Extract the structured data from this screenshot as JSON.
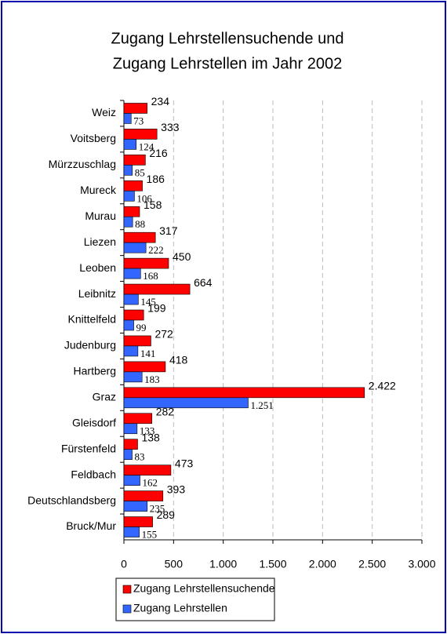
{
  "chart_data": {
    "type": "bar",
    "orientation": "horizontal",
    "title": [
      "Zugang Lehrstellensuchende und",
      "Zugang  Lehrstellen im Jahr 2002"
    ],
    "categories": [
      "Weiz",
      "Voitsberg",
      "Mürzzuschlag",
      "Mureck",
      "Murau",
      "Liezen",
      "Leoben",
      "Leibnitz",
      "Knittelfeld",
      "Judenburg",
      "Hartberg",
      "Graz",
      "Gleisdorf",
      "Fürstenfeld",
      "Feldbach",
      "Deutschlandsberg",
      "Bruck/Mur"
    ],
    "series": [
      {
        "name": "Zugang Lehrstellensuchende",
        "color": "#ff0000",
        "values": [
          234,
          333,
          216,
          186,
          158,
          317,
          450,
          664,
          199,
          272,
          418,
          2422,
          282,
          138,
          473,
          393,
          289
        ],
        "value_labels": [
          "234",
          "333",
          "216",
          "186",
          "158",
          "317",
          "450",
          "664",
          "199",
          "272",
          "418",
          "2.422",
          "282",
          "138",
          "473",
          "393",
          "289"
        ]
      },
      {
        "name": "Zugang Lehrstellen",
        "color": "#3366ff",
        "values": [
          73,
          124,
          85,
          106,
          88,
          222,
          168,
          145,
          99,
          141,
          183,
          1251,
          133,
          83,
          162,
          235,
          155
        ],
        "value_labels": [
          "73",
          "124",
          "85",
          "106",
          "88",
          "222",
          "168",
          "145",
          "99",
          "141",
          "183",
          "1.251",
          "133",
          "83",
          "162",
          "235",
          "155"
        ]
      }
    ],
    "xlim": [
      0,
      3000
    ],
    "xticks": [
      0,
      500,
      {
        "value": 1000,
        "label": "1.000"
      },
      {
        "value": 1500,
        "label": "1.500"
      },
      {
        "value": 2000,
        "label": "2.000"
      },
      {
        "value": 2500,
        "label": "2.500"
      },
      {
        "value": 3000,
        "label": "3.000"
      }
    ],
    "grid": true,
    "legend": "bottom"
  }
}
